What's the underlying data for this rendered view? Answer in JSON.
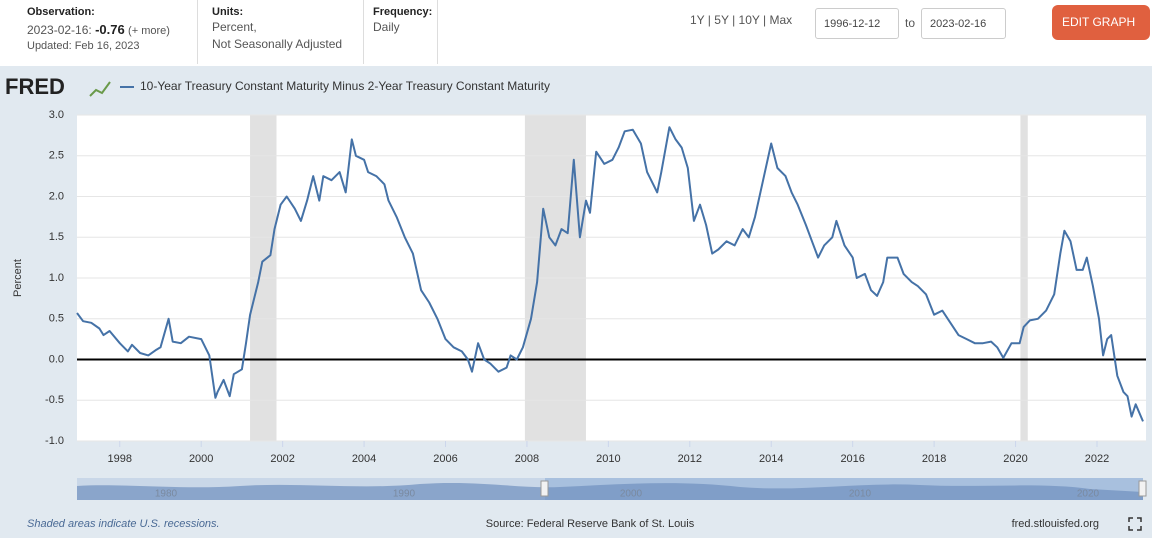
{
  "header": {
    "observation_label": "Observation:",
    "observation_date": "2023-02-16:",
    "observation_value": -0.76,
    "more": "(+ more)",
    "updated": "Updated: Feb 16, 2023",
    "units_label": "Units:",
    "units_lines": [
      "Percent,",
      "Not Seasonally Adjusted"
    ],
    "frequency_label": "Frequency:",
    "frequency": "Daily",
    "ranges": [
      "1Y",
      "5Y",
      "10Y",
      "Max"
    ],
    "start_date": "1996-12-12",
    "to": "to",
    "end_date": "2023-02-16",
    "edit_button": "EDIT GRAPH"
  },
  "logo": "FRED",
  "chart_data": {
    "type": "line",
    "ylabel": "Percent",
    "xlim": [
      1996.95,
      2023.13
    ],
    "xticks": [
      1998,
      2000,
      2002,
      2004,
      2006,
      2008,
      2010,
      2012,
      2014,
      2016,
      2018,
      2020,
      2022
    ],
    "ylim": [
      -1,
      3
    ],
    "yticks": [
      {
        "value": -1,
        "label": "-1.0"
      },
      -0.5,
      {
        "value": 0,
        "label": "0.0"
      },
      0.5,
      {
        "value": 1,
        "label": "1.0"
      },
      1.5,
      {
        "value": 2,
        "label": "2.0"
      },
      2.5,
      {
        "value": 3,
        "label": "3.0"
      }
    ],
    "grid": true,
    "recessions": [
      [
        2001.2,
        2001.85
      ],
      [
        2007.95,
        2009.45
      ],
      [
        2020.12,
        2020.3
      ]
    ],
    "series": [
      {
        "name": "10-Year Treasury Constant Maturity Minus 2-Year Treasury Constant Maturity",
        "color": "#4572a7",
        "x": [
          1996.95,
          1997.1,
          1997.3,
          1997.5,
          1997.6,
          1997.75,
          1998.0,
          1998.2,
          1998.3,
          1998.5,
          1998.7,
          1998.9,
          1999.0,
          1999.2,
          1999.3,
          1999.5,
          1999.7,
          2000.0,
          2000.2,
          2000.35,
          2000.4,
          2000.55,
          2000.7,
          2000.8,
          2001.0,
          2001.1,
          2001.2,
          2001.4,
          2001.5,
          2001.7,
          2001.8,
          2001.95,
          2002.1,
          2002.3,
          2002.45,
          2002.6,
          2002.75,
          2002.9,
          2003.0,
          2003.2,
          2003.4,
          2003.55,
          2003.7,
          2003.8,
          2004.0,
          2004.1,
          2004.3,
          2004.5,
          2004.6,
          2004.8,
          2005.0,
          2005.2,
          2005.4,
          2005.6,
          2005.8,
          2006.0,
          2006.2,
          2006.4,
          2006.55,
          2006.65,
          2006.8,
          2006.95,
          2007.1,
          2007.3,
          2007.5,
          2007.6,
          2007.75,
          2007.9,
          2008.1,
          2008.25,
          2008.4,
          2008.55,
          2008.7,
          2008.85,
          2009.0,
          2009.15,
          2009.3,
          2009.45,
          2009.55,
          2009.7,
          2009.9,
          2010.1,
          2010.25,
          2010.4,
          2010.6,
          2010.8,
          2010.95,
          2011.1,
          2011.2,
          2011.3,
          2011.5,
          2011.65,
          2011.8,
          2011.95,
          2012.1,
          2012.25,
          2012.4,
          2012.55,
          2012.7,
          2012.9,
          2013.1,
          2013.3,
          2013.45,
          2013.6,
          2013.8,
          2014.0,
          2014.15,
          2014.35,
          2014.5,
          2014.65,
          2014.85,
          2015.0,
          2015.15,
          2015.3,
          2015.5,
          2015.6,
          2015.8,
          2016.0,
          2016.1,
          2016.3,
          2016.45,
          2016.6,
          2016.75,
          2016.85,
          2017.1,
          2017.25,
          2017.45,
          2017.6,
          2017.8,
          2018.0,
          2018.2,
          2018.4,
          2018.6,
          2018.8,
          2019.0,
          2019.2,
          2019.4,
          2019.55,
          2019.7,
          2019.9,
          2020.1,
          2020.2,
          2020.35,
          2020.55,
          2020.75,
          2020.95,
          2021.1,
          2021.2,
          2021.35,
          2021.5,
          2021.65,
          2021.75,
          2021.9,
          2022.05,
          2022.15,
          2022.25,
          2022.35,
          2022.5,
          2022.65,
          2022.75,
          2022.85,
          2022.95,
          2023.13
        ],
        "values": [
          0.57,
          0.47,
          0.45,
          0.38,
          0.3,
          0.35,
          0.2,
          0.1,
          0.18,
          0.08,
          0.05,
          0.12,
          0.15,
          0.5,
          0.22,
          0.2,
          0.28,
          0.25,
          0.05,
          -0.47,
          -0.4,
          -0.25,
          -0.45,
          -0.18,
          -0.12,
          0.2,
          0.55,
          0.95,
          1.2,
          1.28,
          1.6,
          1.9,
          2.0,
          1.85,
          1.7,
          1.95,
          2.25,
          1.95,
          2.25,
          2.2,
          2.3,
          2.05,
          2.7,
          2.5,
          2.45,
          2.3,
          2.25,
          2.15,
          1.95,
          1.75,
          1.5,
          1.3,
          0.85,
          0.7,
          0.5,
          0.25,
          0.15,
          0.1,
          0.0,
          -0.15,
          0.2,
          0.0,
          -0.05,
          -0.15,
          -0.1,
          0.05,
          0.0,
          0.15,
          0.5,
          0.95,
          1.85,
          1.5,
          1.4,
          1.6,
          1.55,
          2.45,
          1.5,
          1.95,
          1.8,
          2.55,
          2.4,
          2.45,
          2.6,
          2.8,
          2.82,
          2.65,
          2.3,
          2.15,
          2.05,
          2.3,
          2.85,
          2.7,
          2.6,
          2.35,
          1.7,
          1.9,
          1.65,
          1.3,
          1.35,
          1.45,
          1.4,
          1.6,
          1.5,
          1.75,
          2.2,
          2.65,
          2.35,
          2.25,
          2.05,
          1.9,
          1.65,
          1.45,
          1.25,
          1.4,
          1.5,
          1.7,
          1.4,
          1.25,
          1.0,
          1.05,
          0.85,
          0.78,
          0.95,
          1.25,
          1.25,
          1.05,
          0.95,
          0.9,
          0.8,
          0.55,
          0.6,
          0.45,
          0.3,
          0.25,
          0.2,
          0.2,
          0.22,
          0.15,
          0.02,
          0.2,
          0.2,
          0.4,
          0.48,
          0.5,
          0.6,
          0.8,
          1.3,
          1.58,
          1.45,
          1.1,
          1.1,
          1.25,
          0.9,
          0.5,
          0.05,
          0.25,
          0.3,
          -0.2,
          -0.4,
          -0.45,
          -0.7,
          -0.55,
          -0.76
        ]
      }
    ],
    "navigator_labels": [
      "1980",
      "1990",
      "2000",
      "2010",
      "2020"
    ],
    "recession_note": "Shaded areas indicate U.S. recessions.",
    "source": "Source: Federal Reserve Bank of St. Louis",
    "site": "fred.stlouisfed.org"
  }
}
